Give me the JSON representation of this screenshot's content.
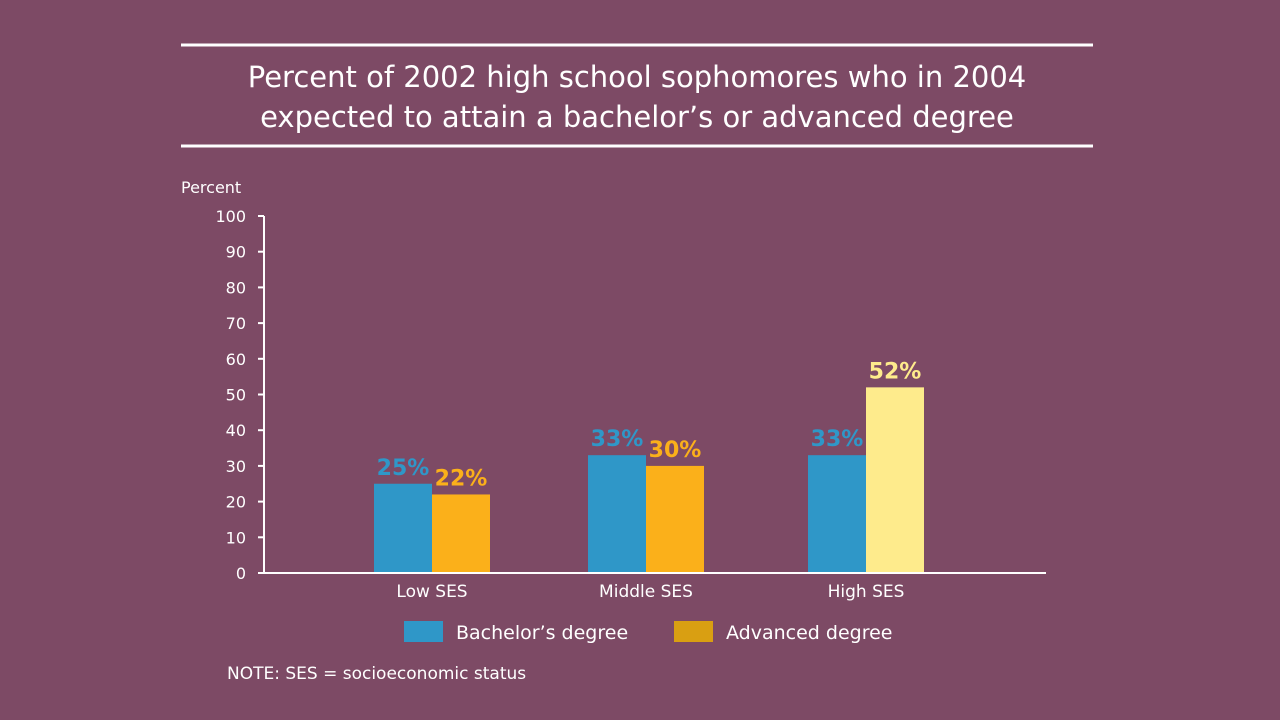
{
  "colors": {
    "background": "#7d4a65",
    "bachelors": "#2f97c8",
    "advanced": "#fbb01a",
    "advanced_highlight": "#feeb8c",
    "text": "#ffffff"
  },
  "chart_data": {
    "type": "bar",
    "title_lines": [
      "Percent of 2002 high school sophomores who in 2004",
      "expected to attain a bachelor’s or advanced degree"
    ],
    "ylabel": "Percent",
    "xlabel": "",
    "ylim": [
      0,
      100
    ],
    "yticks": [
      0,
      10,
      20,
      30,
      40,
      50,
      60,
      70,
      80,
      90,
      100
    ],
    "categories": [
      "Low SES",
      "Middle SES",
      "High SES"
    ],
    "series": [
      {
        "name": "Bachelor’s degree",
        "values": [
          25,
          33,
          33
        ],
        "labels": [
          "25%",
          "33%",
          "33%"
        ],
        "color": "#2f97c8"
      },
      {
        "name": "Advanced degree",
        "values": [
          22,
          30,
          52
        ],
        "labels": [
          "22%",
          "30%",
          "52%"
        ],
        "color": "#fbb01a"
      }
    ],
    "highlight": {
      "series": 1,
      "category": 2,
      "color": "#feeb8c"
    },
    "legend_position": "bottom",
    "grid": false,
    "note": "NOTE: SES = socioeconomic status"
  }
}
